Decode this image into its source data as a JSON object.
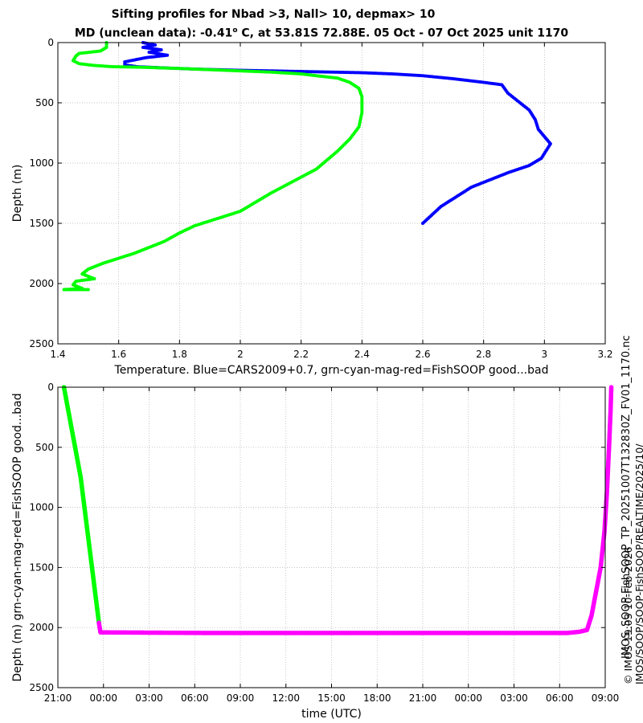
{
  "title": {
    "line1": "Sifting profiles for Nbad >3, Nall> 10, depmax> 10",
    "line2_prefix": "MD (unclean data): -0.41",
    "line2_sup": "o",
    "line2_suffix": " C, at 53.81S 72.88E. 05 Oct - 07 Oct 2025 unit 1170"
  },
  "side_labels": {
    "filename": "IMOS_SOOP-FishSOOP_TP_20251007T132830Z_FV01_1170.nc",
    "credit": "© IMOS 19:03 10-Feb-2026",
    "path": "IMOS/SOOP/SOOP-FishSOOP/REALTIME/2025/10/"
  },
  "colors": {
    "cars": "#0000ff",
    "good": "#00ff00",
    "bad": "#ff00ff",
    "grid": "#b0b0b0"
  },
  "chart_data": [
    {
      "type": "scatter",
      "xlabel": "Temperature. Blue=CARS2009+0.7, grn-cyan-mag-red=FishSOOP good...bad",
      "ylabel": "Depth (m)",
      "xlim": [
        1.4,
        3.2
      ],
      "ylim": [
        2500,
        0
      ],
      "xticks": [
        "1.4",
        "1.6",
        "1.8",
        "2",
        "2.2",
        "2.4",
        "2.6",
        "2.8",
        "3",
        "3.2"
      ],
      "yticks": [
        "0",
        "500",
        "1000",
        "1500",
        "2000",
        "2500"
      ],
      "grid": true,
      "series": [
        {
          "color": "#0000ff",
          "points": [
            [
              1.68,
              0
            ],
            [
              1.72,
              20
            ],
            [
              1.68,
              40
            ],
            [
              1.74,
              60
            ],
            [
              1.7,
              80
            ],
            [
              1.76,
              105
            ],
            [
              1.69,
              125
            ],
            [
              1.62,
              160
            ],
            [
              1.62,
              185
            ],
            [
              1.66,
              200
            ],
            [
              1.75,
              210
            ],
            [
              1.85,
              220
            ],
            [
              2.0,
              230
            ],
            [
              2.1,
              235
            ],
            [
              2.2,
              240
            ],
            [
              2.3,
              245
            ],
            [
              2.4,
              250
            ],
            [
              2.5,
              260
            ],
            [
              2.6,
              275
            ],
            [
              2.7,
              300
            ],
            [
              2.8,
              330
            ],
            [
              2.86,
              350
            ],
            [
              2.88,
              420
            ],
            [
              2.92,
              500
            ],
            [
              2.95,
              560
            ],
            [
              2.97,
              640
            ],
            [
              2.98,
              720
            ],
            [
              3.0,
              780
            ],
            [
              3.02,
              840
            ],
            [
              2.99,
              960
            ],
            [
              2.95,
              1020
            ],
            [
              2.88,
              1080
            ],
            [
              2.76,
              1200
            ],
            [
              2.66,
              1360
            ],
            [
              2.6,
              1500
            ]
          ]
        },
        {
          "color": "#00ff00",
          "points": [
            [
              1.56,
              0
            ],
            [
              1.56,
              40
            ],
            [
              1.54,
              70
            ],
            [
              1.47,
              90
            ],
            [
              1.46,
              110
            ],
            [
              1.45,
              150
            ],
            [
              1.47,
              175
            ],
            [
              1.52,
              190
            ],
            [
              1.58,
              200
            ],
            [
              1.68,
              205
            ],
            [
              1.8,
              215
            ],
            [
              1.95,
              230
            ],
            [
              2.1,
              245
            ],
            [
              2.2,
              260
            ],
            [
              2.25,
              275
            ],
            [
              2.32,
              295
            ],
            [
              2.36,
              330
            ],
            [
              2.39,
              380
            ],
            [
              2.4,
              450
            ],
            [
              2.4,
              580
            ],
            [
              2.39,
              700
            ],
            [
              2.36,
              800
            ],
            [
              2.32,
              900
            ],
            [
              2.25,
              1050
            ],
            [
              2.1,
              1250
            ],
            [
              2.0,
              1400
            ],
            [
              1.85,
              1520
            ],
            [
              1.8,
              1580
            ],
            [
              1.75,
              1650
            ],
            [
              1.65,
              1750
            ],
            [
              1.55,
              1830
            ],
            [
              1.5,
              1880
            ],
            [
              1.48,
              1920
            ],
            [
              1.52,
              1960
            ],
            [
              1.46,
              1980
            ],
            [
              1.45,
              2010
            ],
            [
              1.48,
              2040
            ],
            [
              1.42,
              2050
            ],
            [
              1.5,
              2050
            ]
          ]
        }
      ]
    },
    {
      "type": "scatter",
      "xlabel": "time (UTC)",
      "ylabel": "Depth (m) grn-cyan-mag-red=FishSOOP good...bad",
      "xlim": [
        "21:00",
        "09:00"
      ],
      "ylim": [
        2500,
        0
      ],
      "xticks": [
        "21:00",
        "00:00",
        "03:00",
        "06:00",
        "09:00",
        "12:00",
        "15:00",
        "18:00",
        "21:00",
        "00:00",
        "03:00",
        "06:00",
        "09:00"
      ],
      "yticks": [
        "0",
        "500",
        "1000",
        "1500",
        "2000",
        "2500"
      ],
      "grid": true,
      "series": [
        {
          "color": "#00ff00",
          "points": [
            [
              0.4,
              0
            ],
            [
              1.5,
              750
            ],
            [
              2.7,
              1960
            ]
          ]
        },
        {
          "color": "#ff00ff",
          "points": [
            [
              2.7,
              1960
            ],
            [
              2.8,
              2040
            ],
            [
              10,
              2045
            ],
            [
              20,
              2045
            ],
            [
              30,
              2045
            ],
            [
              33.5,
              2045
            ],
            [
              34.3,
              2035
            ],
            [
              34.8,
              2020
            ],
            [
              35.1,
              1900
            ],
            [
              35.4,
              1700
            ],
            [
              35.7,
              1500
            ],
            [
              35.95,
              1200
            ],
            [
              36.1,
              900
            ],
            [
              36.25,
              500
            ],
            [
              36.35,
              200
            ],
            [
              36.4,
              0
            ]
          ]
        }
      ]
    }
  ]
}
